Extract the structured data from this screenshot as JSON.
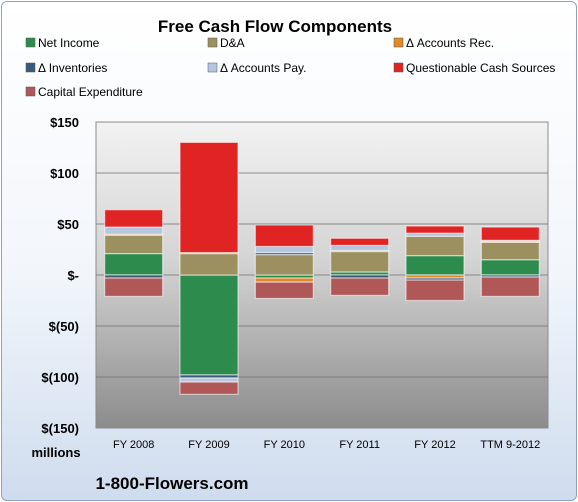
{
  "chart_data": {
    "type": "bar",
    "stacked": true,
    "title": "Free Cash Flow Components",
    "ylabel_unit": "millions",
    "source": "1-800-Flowers.com",
    "categories": [
      "FY 2008",
      "FY 2009",
      "FY 2010",
      "FY 2011",
      "FY 2012",
      "TTM 9-2012"
    ],
    "ylim": [
      -150,
      150
    ],
    "yticks": [
      150,
      100,
      50,
      0,
      -50,
      -100,
      -150
    ],
    "ytick_labels": [
      "$150",
      "$100",
      "$50",
      "$-",
      "$(50)",
      "$(100)",
      "$(150)"
    ],
    "grid": true,
    "legend_position": "top",
    "series": [
      {
        "name": "Net Income",
        "color": "#2e8b4e",
        "values": [
          21,
          -98,
          -3,
          3,
          19,
          15
        ]
      },
      {
        "name": "D&A",
        "color": "#9c9060",
        "values": [
          18,
          21,
          20,
          20,
          19,
          17
        ]
      },
      {
        "name": "Δ Accounts Rec.",
        "color": "#e08a28",
        "values": [
          1,
          1,
          -4,
          1,
          -3,
          1
        ]
      },
      {
        "name": "Δ Inventories",
        "color": "#3a5a7a",
        "values": [
          -3,
          -3,
          2,
          -3,
          -2,
          -2
        ]
      },
      {
        "name": "Δ Accounts Pay.",
        "color": "#b4c6e0",
        "values": [
          7,
          -4,
          6,
          5,
          3,
          1
        ]
      },
      {
        "name": "Questionable Cash Sources",
        "color": "#e02424",
        "values": [
          17,
          108,
          21,
          7,
          7,
          13
        ]
      },
      {
        "name": "Capital Expenditure",
        "color": "#b05858",
        "values": [
          -18,
          -12,
          -16,
          -17,
          -20,
          -19
        ]
      }
    ]
  }
}
